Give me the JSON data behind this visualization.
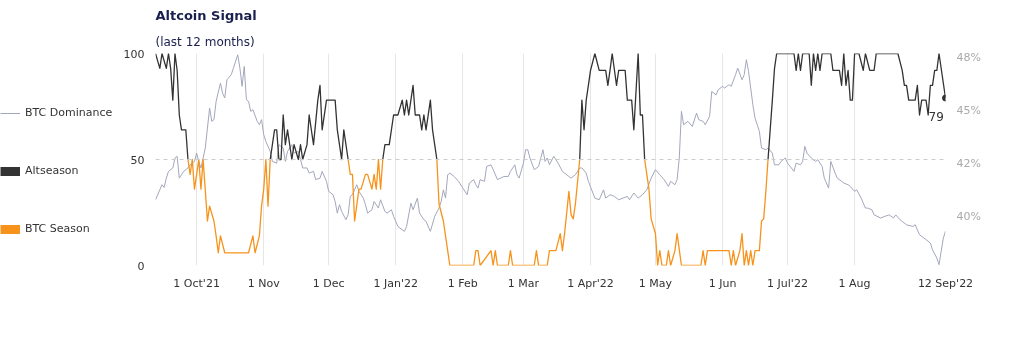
{
  "chart_data": {
    "type": "line",
    "title": "Altcoin Signal",
    "subtitle": "(last 12 months)",
    "x": [
      "2021-09-12",
      "2021-09-14",
      "2021-09-15",
      "2021-09-17",
      "2021-09-18",
      "2021-09-19",
      "2021-09-20",
      "2021-09-21",
      "2021-09-22",
      "2021-09-23",
      "2021-09-24",
      "2021-09-26",
      "2021-09-27",
      "2021-09-28",
      "2021-09-29",
      "2021-09-30",
      "2021-10-02",
      "2021-10-03",
      "2021-10-04",
      "2021-10-06",
      "2021-10-07",
      "2021-10-09",
      "2021-10-10",
      "2021-10-11",
      "2021-10-12",
      "2021-10-14",
      "2021-10-25",
      "2021-10-27",
      "2021-10-28",
      "2021-10-30",
      "2021-10-31",
      "2021-11-01",
      "2021-11-02",
      "2021-11-03",
      "2021-11-04",
      "2021-11-06",
      "2021-11-07",
      "2021-11-08",
      "2021-11-09",
      "2021-11-10",
      "2021-11-11",
      "2021-11-12",
      "2021-11-14",
      "2021-11-15",
      "2021-11-17",
      "2021-11-18",
      "2021-11-19",
      "2021-11-21",
      "2021-11-22",
      "2021-11-24",
      "2021-11-26",
      "2021-11-27",
      "2021-11-28",
      "2021-11-30",
      "2021-12-04",
      "2021-12-05",
      "2021-12-07",
      "2021-12-08",
      "2021-12-10",
      "2021-12-11",
      "2021-12-12",
      "2021-12-13",
      "2021-12-15",
      "2021-12-16",
      "2021-12-18",
      "2021-12-19",
      "2021-12-21",
      "2021-12-22",
      "2021-12-23",
      "2021-12-24",
      "2021-12-25",
      "2021-12-26",
      "2021-12-27",
      "2021-12-29",
      "2021-12-31",
      "2022-01-02",
      "2022-01-04",
      "2022-01-05",
      "2022-01-06",
      "2022-01-07",
      "2022-01-08",
      "2022-01-09",
      "2022-01-10",
      "2022-01-12",
      "2022-01-13",
      "2022-01-14",
      "2022-01-15",
      "2022-01-16",
      "2022-01-17",
      "2022-01-18",
      "2022-01-20",
      "2022-01-21",
      "2022-01-23",
      "2022-01-24",
      "2022-01-26",
      "2022-02-06",
      "2022-02-07",
      "2022-02-08",
      "2022-02-09",
      "2022-02-14",
      "2022-02-15",
      "2022-02-16",
      "2022-02-17",
      "2022-02-22",
      "2022-02-23",
      "2022-02-24",
      "2022-03-06",
      "2022-03-07",
      "2022-03-08",
      "2022-03-12",
      "2022-03-13",
      "2022-03-16",
      "2022-03-18",
      "2022-03-19",
      "2022-03-20",
      "2022-03-22",
      "2022-03-23",
      "2022-03-24",
      "2022-03-25",
      "2022-03-27",
      "2022-03-28",
      "2022-03-29",
      "2022-03-30",
      "2022-03-31",
      "2022-04-01",
      "2022-04-03",
      "2022-04-05",
      "2022-04-08",
      "2022-04-09",
      "2022-04-10",
      "2022-04-11",
      "2022-04-13",
      "2022-04-14",
      "2022-04-17",
      "2022-04-18",
      "2022-04-20",
      "2022-04-21",
      "2022-04-23",
      "2022-04-24",
      "2022-04-25",
      "2022-04-26",
      "2022-04-28",
      "2022-04-29",
      "2022-05-01",
      "2022-05-02",
      "2022-05-03",
      "2022-05-04",
      "2022-05-06",
      "2022-05-07",
      "2022-05-08",
      "2022-05-10",
      "2022-05-11",
      "2022-05-13",
      "2022-05-16",
      "2022-05-22",
      "2022-05-23",
      "2022-05-24",
      "2022-05-25",
      "2022-05-26",
      "2022-06-04",
      "2022-06-05",
      "2022-06-06",
      "2022-06-07",
      "2022-06-09",
      "2022-06-10",
      "2022-06-11",
      "2022-06-12",
      "2022-06-13",
      "2022-06-14",
      "2022-06-15",
      "2022-06-16",
      "2022-06-18",
      "2022-06-19",
      "2022-06-20",
      "2022-06-21",
      "2022-06-22",
      "2022-06-24",
      "2022-06-25",
      "2022-06-26",
      "2022-07-04",
      "2022-07-05",
      "2022-07-06",
      "2022-07-07",
      "2022-07-08",
      "2022-07-11",
      "2022-07-12",
      "2022-07-13",
      "2022-07-14",
      "2022-07-15",
      "2022-07-16",
      "2022-07-17",
      "2022-07-21",
      "2022-07-22",
      "2022-07-25",
      "2022-07-26",
      "2022-07-27",
      "2022-07-28",
      "2022-07-29",
      "2022-07-30",
      "2022-07-31",
      "2022-08-01",
      "2022-08-03",
      "2022-08-05",
      "2022-08-06",
      "2022-08-08",
      "2022-08-10",
      "2022-08-11",
      "2022-08-21",
      "2022-08-23",
      "2022-08-24",
      "2022-08-25",
      "2022-08-26",
      "2022-08-29",
      "2022-08-30",
      "2022-08-31",
      "2022-09-01",
      "2022-09-03",
      "2022-09-04",
      "2022-09-05",
      "2022-09-06",
      "2022-09-07",
      "2022-09-08",
      "2022-09-09",
      "2022-09-12"
    ],
    "series": [
      {
        "name": "BTC Dominance",
        "color": "#a3a7bb",
        "axis": "y2",
        "x": [
          "2021-09-12",
          "2021-09-14",
          "2021-09-15",
          "2021-09-16",
          "2021-09-17",
          "2021-09-18",
          "2021-09-20",
          "2021-09-21",
          "2021-09-22",
          "2021-09-23",
          "2021-09-24",
          "2021-09-25",
          "2021-09-27",
          "2021-09-28",
          "2021-09-30",
          "2021-10-01",
          "2021-10-02",
          "2021-10-03",
          "2021-10-05",
          "2021-10-06",
          "2021-10-07",
          "2021-10-08",
          "2021-10-09",
          "2021-10-10",
          "2021-10-12",
          "2021-10-13",
          "2021-10-14",
          "2021-10-15",
          "2021-10-17",
          "2021-10-18",
          "2021-10-20",
          "2021-10-21",
          "2021-10-22",
          "2021-10-23",
          "2021-10-24",
          "2021-10-25",
          "2021-10-26",
          "2021-10-27",
          "2021-10-29",
          "2021-10-30",
          "2021-10-31",
          "2021-11-01",
          "2021-11-02",
          "2021-11-04",
          "2021-11-05",
          "2021-11-07",
          "2021-11-08",
          "2021-11-10",
          "2021-11-11",
          "2021-11-12",
          "2021-11-14",
          "2021-11-15",
          "2021-11-17",
          "2021-11-19",
          "2021-11-21",
          "2021-11-22",
          "2021-11-24",
          "2021-11-25",
          "2021-11-27",
          "2021-11-28",
          "2021-11-30",
          "2021-12-01",
          "2021-12-03",
          "2021-12-04",
          "2021-12-05",
          "2021-12-06",
          "2021-12-07",
          "2021-12-09",
          "2021-12-10",
          "2021-12-11",
          "2021-12-12",
          "2021-12-14",
          "2021-12-15",
          "2021-12-17",
          "2021-12-18",
          "2021-12-19",
          "2021-12-21",
          "2021-12-22",
          "2021-12-24",
          "2021-12-25",
          "2021-12-27",
          "2021-12-28",
          "2021-12-30",
          "2021-12-31",
          "2022-01-02",
          "2022-01-05",
          "2022-01-06",
          "2022-01-08",
          "2022-01-09",
          "2022-01-11",
          "2022-01-12",
          "2022-01-14",
          "2022-01-15",
          "2022-01-17",
          "2022-01-19",
          "2022-01-21",
          "2022-01-22",
          "2022-01-23",
          "2022-01-24",
          "2022-01-25",
          "2022-01-26",
          "2022-01-28",
          "2022-01-30",
          "2022-02-01",
          "2022-02-03",
          "2022-02-04",
          "2022-02-06",
          "2022-02-07",
          "2022-02-08",
          "2022-02-09",
          "2022-02-11",
          "2022-02-12",
          "2022-02-14",
          "2022-02-15",
          "2022-02-17",
          "2022-02-20",
          "2022-02-22",
          "2022-02-23",
          "2022-02-25",
          "2022-02-26",
          "2022-02-27",
          "2022-03-01",
          "2022-03-02",
          "2022-03-03",
          "2022-03-04",
          "2022-03-06",
          "2022-03-08",
          "2022-03-10",
          "2022-03-11",
          "2022-03-12",
          "2022-03-13",
          "2022-03-15",
          "2022-03-17",
          "2022-03-19",
          "2022-03-22",
          "2022-03-23",
          "2022-03-25",
          "2022-03-27",
          "2022-03-28",
          "2022-03-30",
          "2022-03-31",
          "2022-04-03",
          "2022-04-05",
          "2022-04-07",
          "2022-04-08",
          "2022-04-10",
          "2022-04-12",
          "2022-04-14",
          "2022-04-16",
          "2022-04-18",
          "2022-04-19",
          "2022-04-21",
          "2022-04-23",
          "2022-04-25",
          "2022-04-27",
          "2022-04-29",
          "2022-05-01",
          "2022-05-03",
          "2022-05-05",
          "2022-05-07",
          "2022-05-08",
          "2022-05-10",
          "2022-05-11",
          "2022-05-12",
          "2022-05-13",
          "2022-05-14",
          "2022-05-16",
          "2022-05-18",
          "2022-05-20",
          "2022-05-21",
          "2022-05-23",
          "2022-05-24",
          "2022-05-26",
          "2022-05-27",
          "2022-05-29",
          "2022-05-30",
          "2022-06-01",
          "2022-06-02",
          "2022-06-04",
          "2022-06-05",
          "2022-06-07",
          "2022-06-08",
          "2022-06-10",
          "2022-06-11",
          "2022-06-12",
          "2022-06-13",
          "2022-06-15",
          "2022-06-16",
          "2022-06-18",
          "2022-06-19",
          "2022-06-21",
          "2022-06-22",
          "2022-06-24",
          "2022-06-25",
          "2022-06-27",
          "2022-06-28",
          "2022-06-30",
          "2022-07-01",
          "2022-07-04",
          "2022-07-05",
          "2022-07-07",
          "2022-07-08",
          "2022-07-09",
          "2022-07-10",
          "2022-07-12",
          "2022-07-14",
          "2022-07-15",
          "2022-07-17",
          "2022-07-18",
          "2022-07-20",
          "2022-07-21",
          "2022-07-23",
          "2022-07-24",
          "2022-07-26",
          "2022-07-27",
          "2022-07-29",
          "2022-07-30",
          "2022-08-01",
          "2022-08-02",
          "2022-08-04",
          "2022-08-06",
          "2022-08-07",
          "2022-08-09",
          "2022-08-10",
          "2022-08-13",
          "2022-08-15",
          "2022-08-17",
          "2022-08-19",
          "2022-08-20",
          "2022-08-22",
          "2022-08-23",
          "2022-08-25",
          "2022-08-28",
          "2022-08-29",
          "2022-08-31",
          "2022-09-03",
          "2022-09-05",
          "2022-09-06",
          "2022-09-08",
          "2022-09-09",
          "2022-09-11",
          "2022-09-12"
        ],
        "values": [
          40.8,
          41.27,
          41.51,
          41.38,
          41.82,
          42.14,
          42.3,
          42.77,
          42.85,
          41.82,
          41.98,
          42.14,
          42.3,
          42.45,
          42.61,
          43.0,
          42.61,
          42.3,
          43.24,
          44.18,
          45.13,
          44.5,
          44.58,
          45.44,
          46.3,
          45.83,
          45.6,
          46.46,
          46.7,
          47.01,
          47.64,
          47.01,
          46.15,
          47.09,
          45.52,
          45.44,
          44.97,
          45.05,
          44.5,
          44.34,
          44.58,
          43.87,
          43.55,
          43.08,
          42.61,
          42.53,
          43.4,
          43.24,
          42.61,
          43.08,
          43.4,
          43.0,
          43.08,
          42.3,
          42.3,
          42.06,
          42.14,
          41.75,
          41.82,
          42.14,
          41.67,
          41.2,
          41.04,
          40.72,
          40.17,
          40.57,
          40.25,
          39.86,
          40.1,
          40.96,
          41.04,
          41.51,
          41.2,
          40.88,
          40.57,
          40.17,
          40.33,
          40.72,
          40.41,
          40.8,
          40.25,
          40.17,
          40.33,
          40.02,
          39.54,
          39.31,
          39.54,
          40.64,
          40.33,
          40.88,
          40.17,
          39.86,
          39.78,
          39.31,
          40.02,
          40.41,
          40.72,
          41.27,
          40.88,
          41.98,
          42.06,
          41.9,
          41.67,
          41.35,
          41.04,
          41.59,
          41.75,
          41.51,
          41.35,
          41.75,
          41.67,
          42.37,
          42.45,
          42.22,
          41.75,
          41.9,
          41.9,
          42.14,
          42.45,
          41.98,
          41.82,
          42.53,
          43.16,
          43.16,
          42.77,
          42.22,
          42.37,
          43.16,
          42.61,
          42.77,
          42.45,
          42.85,
          42.53,
          42.14,
          41.9,
          41.82,
          41.98,
          42.3,
          42.3,
          42.06,
          41.67,
          40.88,
          40.8,
          41.27,
          40.88,
          41.04,
          40.96,
          40.8,
          40.88,
          40.96,
          40.8,
          41.12,
          40.88,
          41.04,
          41.27,
          41.82,
          42.22,
          41.98,
          41.75,
          41.43,
          41.67,
          41.51,
          41.75,
          42.77,
          44.97,
          44.34,
          44.5,
          44.26,
          44.89,
          44.58,
          44.5,
          44.34,
          44.73,
          45.91,
          45.75,
          45.99,
          46.15,
          46.07,
          46.23,
          46.15,
          46.7,
          47.01,
          46.46,
          46.7,
          47.41,
          46.86,
          45.28,
          44.65,
          44.03,
          43.24,
          43.16,
          43.24,
          43.0,
          42.45,
          42.45,
          42.61,
          42.77,
          42.53,
          42.14,
          42.53,
          42.45,
          42.61,
          43.32,
          43.0,
          42.77,
          42.61,
          42.69,
          42.37,
          41.82,
          41.35,
          42.61,
          42.06,
          41.82,
          41.67,
          41.59,
          41.51,
          41.43,
          41.2,
          41.27,
          40.88,
          40.41,
          40.41,
          40.33,
          40.09,
          39.94,
          40.02,
          40.09,
          39.94,
          40.09,
          39.86,
          39.78,
          39.62,
          39.54,
          39.62,
          39.15,
          38.92,
          38.76,
          38.44,
          38.05,
          37.74,
          38.99,
          39.32
        ]
      },
      {
        "name": "Altseason",
        "color": "#333333",
        "values": [
          100,
          93,
          100,
          93,
          100,
          93,
          78,
          100,
          92,
          71,
          64,
          64,
          50,
          null,
          null,
          null,
          null,
          null,
          null,
          null,
          null,
          null,
          null,
          null,
          null,
          null,
          null,
          null,
          null,
          null,
          null,
          null,
          null,
          null,
          50,
          64,
          64,
          50,
          50,
          71,
          57,
          64,
          50,
          57,
          50,
          57,
          50,
          57,
          71,
          57,
          78,
          85,
          64,
          78,
          78,
          64,
          50,
          64,
          50,
          null,
          null,
          null,
          null,
          null,
          null,
          null,
          null,
          null,
          null,
          null,
          null,
          50,
          57,
          57,
          71,
          71,
          78,
          71,
          78,
          71,
          78,
          85,
          71,
          71,
          64,
          71,
          64,
          71,
          78,
          64,
          50,
          null,
          null,
          null,
          null,
          null,
          null,
          null,
          null,
          null,
          null,
          null,
          null,
          null,
          null,
          null,
          null,
          null,
          null,
          null,
          null,
          null,
          null,
          null,
          null,
          null,
          null,
          null,
          null,
          50,
          78,
          64,
          78,
          85,
          92,
          100,
          92,
          92,
          85,
          92,
          100,
          85,
          92,
          92,
          78,
          78,
          64,
          100,
          71,
          71,
          50,
          null,
          null,
          null,
          null,
          null,
          null,
          null,
          null,
          null,
          null,
          null,
          null,
          null,
          null,
          null,
          null,
          null,
          null,
          null,
          null,
          null,
          null,
          null,
          null,
          null,
          null,
          null,
          null,
          null,
          null,
          null,
          null,
          null,
          null,
          50,
          78,
          93,
          100,
          100,
          92,
          100,
          92,
          100,
          100,
          85,
          100,
          92,
          100,
          92,
          100,
          100,
          92,
          92,
          85,
          100,
          85,
          92,
          78,
          78,
          100,
          100,
          92,
          100,
          92,
          92,
          100,
          100,
          92,
          85,
          85,
          78,
          78,
          85,
          71,
          78,
          78,
          71,
          85,
          85,
          92,
          92,
          100,
          79
        ]
      },
      {
        "name": "BTC Season",
        "color": "#f7931a",
        "values": [
          null,
          null,
          null,
          null,
          null,
          null,
          null,
          null,
          null,
          null,
          null,
          null,
          50,
          43,
          50,
          36,
          50,
          36,
          50,
          21,
          28,
          21,
          14,
          6,
          14,
          6,
          6,
          14,
          6,
          14,
          28,
          36,
          50,
          28,
          50,
          null,
          null,
          null,
          null,
          null,
          null,
          null,
          null,
          null,
          null,
          null,
          null,
          null,
          null,
          null,
          null,
          null,
          null,
          null,
          null,
          null,
          null,
          null,
          50,
          43,
          43,
          21,
          36,
          36,
          43,
          43,
          36,
          43,
          36,
          50,
          36,
          50,
          null,
          null,
          null,
          null,
          null,
          null,
          null,
          null,
          null,
          null,
          null,
          null,
          null,
          null,
          null,
          null,
          null,
          null,
          50,
          29,
          21,
          14,
          0,
          0,
          7,
          7,
          0,
          7,
          0,
          7,
          0,
          0,
          7,
          0,
          0,
          7,
          0,
          0,
          7,
          7,
          15,
          7,
          15,
          35,
          24,
          22,
          29,
          50,
          null,
          null,
          null,
          null,
          null,
          null,
          null,
          null,
          null,
          null,
          null,
          null,
          null,
          null,
          null,
          null,
          null,
          null,
          null,
          null,
          50,
          36,
          22,
          15,
          0,
          7,
          0,
          0,
          7,
          0,
          7,
          15,
          0,
          0,
          0,
          7,
          0,
          7,
          7,
          7,
          0,
          7,
          0,
          7,
          15,
          0,
          7,
          0,
          7,
          0,
          7,
          7,
          21,
          22,
          35,
          50,
          null,
          null,
          null,
          null,
          null,
          null,
          null,
          null,
          null,
          null,
          null,
          null,
          null,
          null,
          null,
          null,
          null,
          null,
          null,
          null,
          null,
          null,
          null,
          null,
          null,
          null,
          null,
          null,
          null,
          null,
          null,
          null,
          null,
          null,
          null,
          null,
          null,
          null,
          null,
          null,
          null,
          null,
          null,
          null,
          null,
          null,
          null,
          null
        ]
      }
    ],
    "xlim": [
      "2021-09-12",
      "2022-09-12"
    ],
    "xticks": [
      {
        "value": "2021-10-01",
        "label": "1 Oct'21"
      },
      {
        "value": "2021-11-01",
        "label": "1 Nov"
      },
      {
        "value": "2021-12-01",
        "label": "1 Dec"
      },
      {
        "value": "2022-01-01",
        "label": "1 Jan'22"
      },
      {
        "value": "2022-02-01",
        "label": "1 Feb"
      },
      {
        "value": "2022-03-01",
        "label": "1 Mar"
      },
      {
        "value": "2022-04-01",
        "label": "1 Apr'22"
      },
      {
        "value": "2022-05-01",
        "label": "1 May"
      },
      {
        "value": "2022-06-01",
        "label": "1 Jun"
      },
      {
        "value": "2022-07-01",
        "label": "1 Jul'22"
      },
      {
        "value": "2022-08-01",
        "label": "1 Aug"
      },
      {
        "value": "2022-09-12",
        "label": "12 Sep'22"
      }
    ],
    "ylim": [
      0,
      100
    ],
    "yticks": [
      0,
      50,
      100
    ],
    "y2lim": [
      37.7,
      47.7
    ],
    "y2ticks": [
      {
        "value": 40,
        "label": "40%"
      },
      {
        "value": 42.5,
        "label": "42%"
      },
      {
        "value": 45,
        "label": "45%"
      },
      {
        "value": 47.5,
        "label": "48%"
      }
    ],
    "ref_lines": [
      {
        "axis": "y",
        "value": 50,
        "color": "#cccccc",
        "line_style": "dashed"
      }
    ],
    "annotations": [
      {
        "text": "79",
        "x": "2022-09-12",
        "y": 79
      }
    ],
    "grid": "x",
    "legend": "left"
  }
}
